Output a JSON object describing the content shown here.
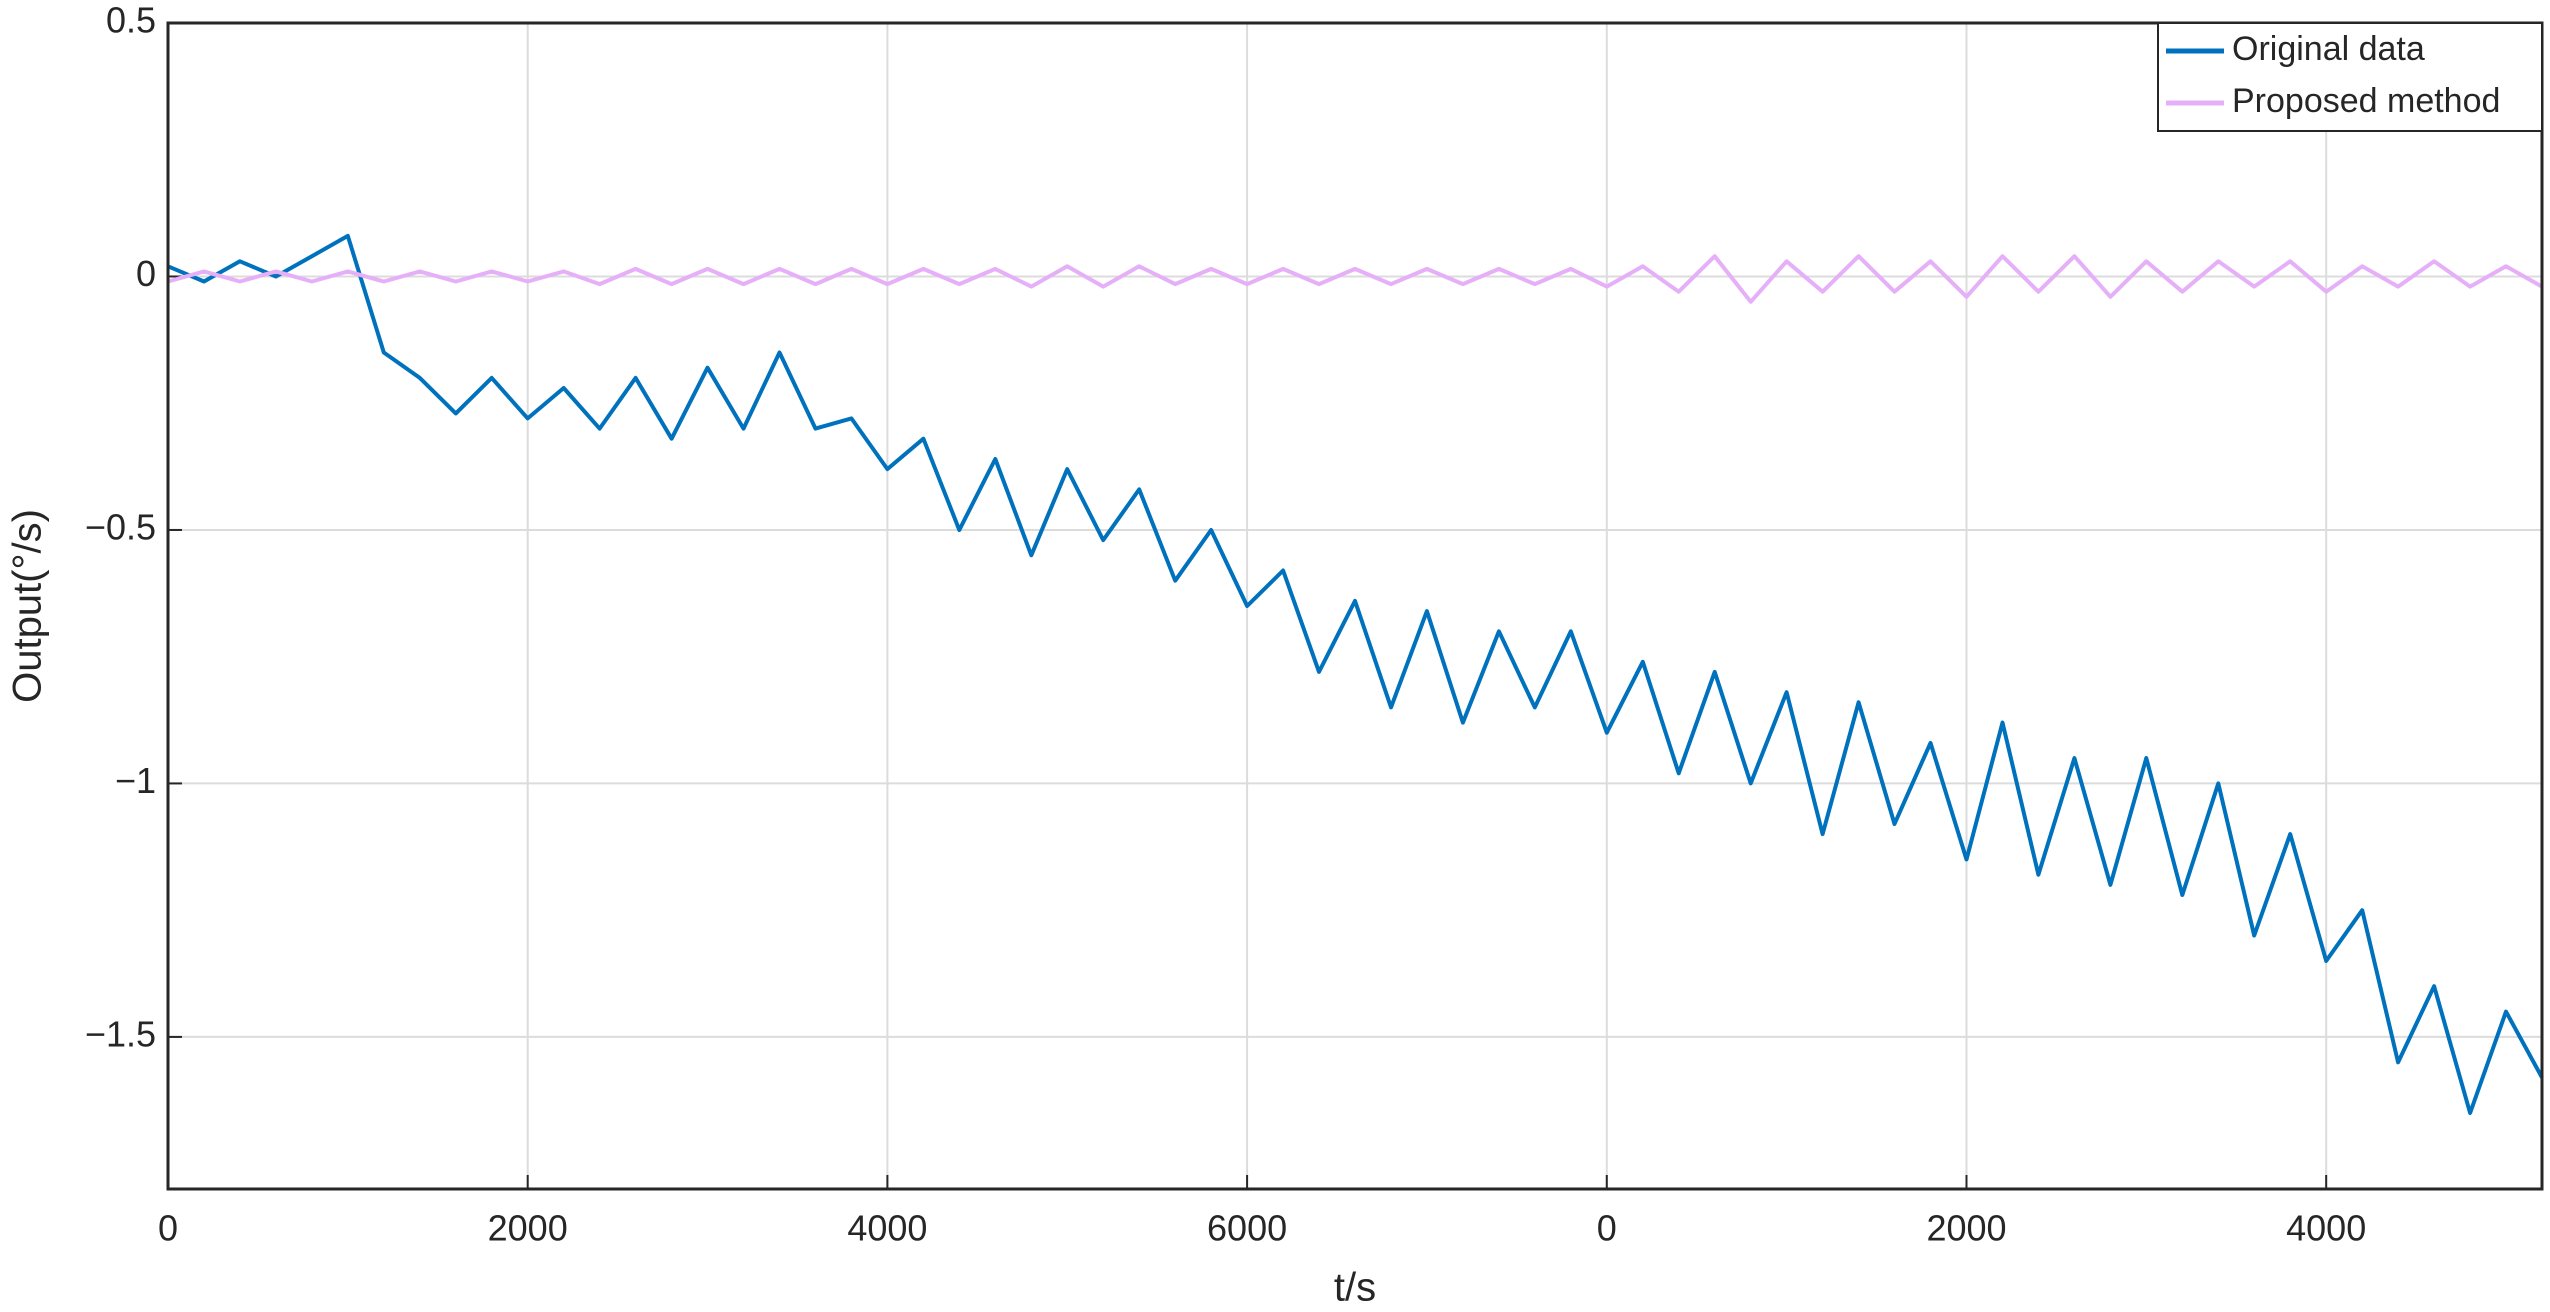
{
  "chart_data": {
    "type": "line",
    "xlabel": "t/s",
    "ylabel": "Output(°/s)",
    "x": [
      0,
      200,
      400,
      600,
      800,
      1000,
      1200,
      1400,
      1600,
      1800,
      2000,
      2200,
      2400,
      2600,
      2800,
      3000,
      3200,
      3400,
      3600,
      3800,
      4000,
      4200,
      4400,
      4600,
      4800,
      5000,
      5200,
      5400,
      5600,
      5800,
      6000,
      6200,
      6400,
      6600,
      6800,
      7000,
      7200,
      7400,
      7600,
      7800,
      8000,
      8200,
      8400,
      8600,
      8800,
      9000,
      9200,
      9400,
      9600,
      9800,
      10000,
      10200,
      10400,
      10600,
      10800,
      11000,
      11200,
      11400,
      11600,
      11800,
      12000,
      12200,
      12400,
      12600,
      12800,
      13000,
      13200
    ],
    "series": [
      {
        "name": "Original data",
        "color": "#0072bd",
        "values": [
          0.02,
          -0.01,
          0.03,
          0.0,
          0.04,
          0.08,
          -0.15,
          -0.2,
          -0.27,
          -0.2,
          -0.28,
          -0.22,
          -0.3,
          -0.2,
          -0.32,
          -0.18,
          -0.3,
          -0.15,
          -0.3,
          -0.28,
          -0.38,
          -0.32,
          -0.5,
          -0.36,
          -0.55,
          -0.38,
          -0.52,
          -0.42,
          -0.6,
          -0.5,
          -0.65,
          -0.58,
          -0.78,
          -0.64,
          -0.85,
          -0.66,
          -0.88,
          -0.7,
          -0.85,
          -0.7,
          -0.9,
          -0.76,
          -0.98,
          -0.78,
          -1.0,
          -0.82,
          -1.1,
          -0.84,
          -1.08,
          -0.92,
          -1.15,
          -0.88,
          -1.18,
          -0.95,
          -1.2,
          -0.95,
          -1.22,
          -1.0,
          -1.3,
          -1.1,
          -1.35,
          -1.25,
          -1.55,
          -1.4,
          -1.65,
          -1.45,
          -1.58
        ]
      },
      {
        "name": "Proposed method",
        "color": "#e6b0f8",
        "values": [
          -0.01,
          0.01,
          -0.01,
          0.01,
          -0.01,
          0.01,
          -0.01,
          0.01,
          -0.01,
          0.01,
          -0.01,
          0.01,
          -0.015,
          0.015,
          -0.015,
          0.015,
          -0.015,
          0.015,
          -0.015,
          0.015,
          -0.015,
          0.015,
          -0.015,
          0.015,
          -0.02,
          0.02,
          -0.02,
          0.02,
          -0.015,
          0.015,
          -0.015,
          0.015,
          -0.015,
          0.015,
          -0.015,
          0.015,
          -0.015,
          0.015,
          -0.015,
          0.015,
          -0.02,
          0.02,
          -0.03,
          0.04,
          -0.05,
          0.03,
          -0.03,
          0.04,
          -0.03,
          0.03,
          -0.04,
          0.04,
          -0.03,
          0.04,
          -0.04,
          0.03,
          -0.03,
          0.03,
          -0.02,
          0.03,
          -0.03,
          0.02,
          -0.02,
          0.03,
          -0.02,
          0.02,
          -0.02
        ]
      }
    ],
    "xlim": [
      0,
      13200
    ],
    "xticks": [
      0,
      2000,
      4000,
      6000,
      {
        "value": 8000,
        "label": "0"
      },
      {
        "value": 10000,
        "label": "2000"
      },
      {
        "value": 12000,
        "label": "4000"
      }
    ],
    "ylim": [
      -1.8,
      0.5
    ],
    "yticks": [
      0.5,
      0,
      {
        "value": -0.5,
        "label": "−0.5"
      },
      {
        "value": -1,
        "label": "−1"
      },
      {
        "value": -1.5,
        "label": "−1.5"
      }
    ],
    "grid": true,
    "legend": "upper right"
  }
}
